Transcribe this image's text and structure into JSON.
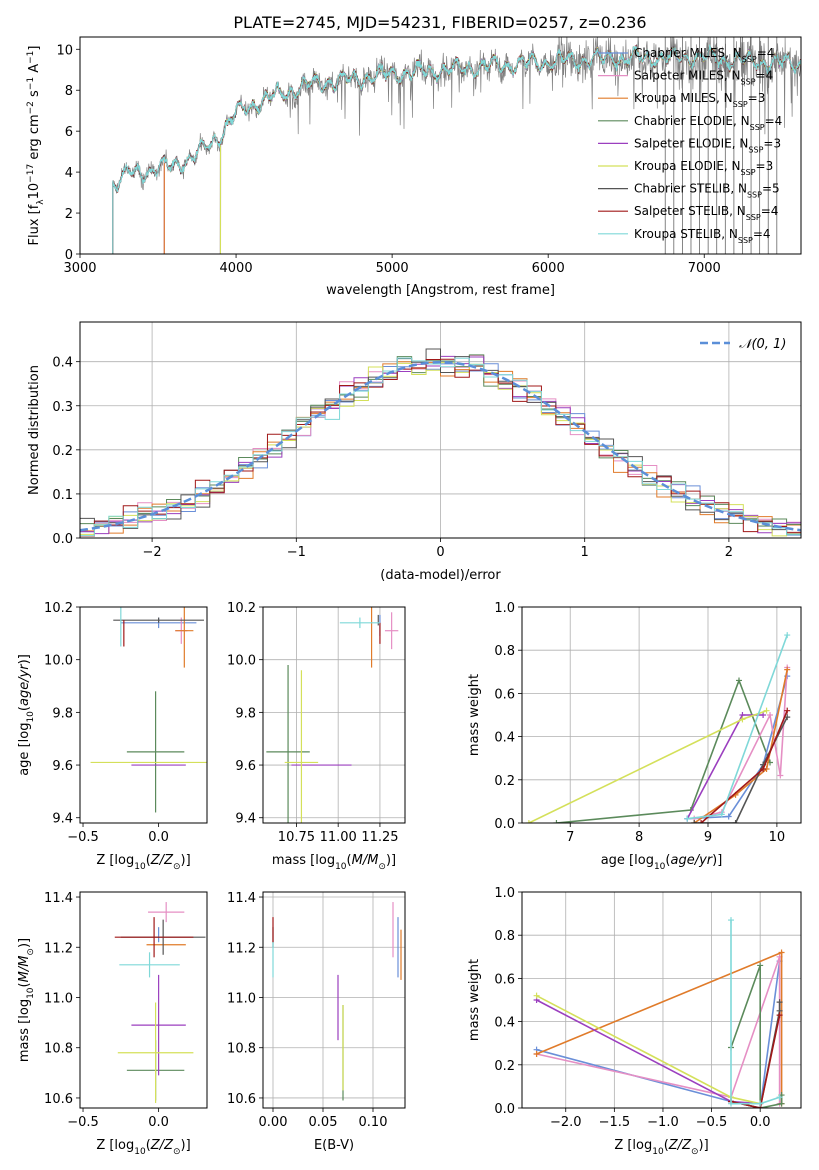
{
  "figure_title": "PLATE=2745, MJD=54231, FIBERID=0257, z=0.236",
  "model_colors": {
    "Chabrier MILES": "#6a8fd8",
    "Salpeter MILES": "#e58fc4",
    "Kroupa MILES": "#e07b2a",
    "Chabrier ELODIE": "#5b8a5b",
    "Salpeter ELODIE": "#9b3fbf",
    "Kroupa ELODIE": "#d4e05a",
    "Chabrier STELIB": "#555555",
    "Salpeter STELIB": "#a01818",
    "Kroupa STELIB": "#7fd8d8",
    "gaussian": "#5b8fd8",
    "observed": "#808080"
  },
  "chart_data": [
    {
      "id": "spectrum",
      "type": "line",
      "title": "PLATE=2745, MJD=54231, FIBERID=0257, z=0.236",
      "xlabel": "wavelength [Angstrom, rest frame]",
      "ylabel_parts": [
        "Flux [f",
        "λ",
        "10",
        "−17",
        " erg cm",
        "−2",
        " s",
        "−1",
        " A",
        "−1",
        "]"
      ],
      "xlim": [
        3000,
        7620
      ],
      "ylim": [
        0,
        10.6
      ],
      "xticks": [
        3000,
        4000,
        5000,
        6000,
        7000
      ],
      "yticks": [
        0,
        2,
        4,
        6,
        8,
        10
      ],
      "grid": false,
      "legend_position": "upper-right",
      "observed_start": 3210,
      "continuum_knots": [
        [
          3210,
          3.3
        ],
        [
          3300,
          3.9
        ],
        [
          3500,
          4.15
        ],
        [
          3700,
          4.6
        ],
        [
          3900,
          5.8
        ],
        [
          4000,
          6.9
        ],
        [
          4200,
          7.6
        ],
        [
          4500,
          8.3
        ],
        [
          5000,
          8.8
        ],
        [
          5500,
          9.1
        ],
        [
          6000,
          9.4
        ],
        [
          6500,
          9.6
        ],
        [
          7000,
          9.6
        ],
        [
          7300,
          9.4
        ],
        [
          7620,
          9.3
        ]
      ],
      "series": [
        {
          "name": "Chabrier MILES",
          "nssp": 4,
          "start": 3540
        },
        {
          "name": "Salpeter MILES",
          "nssp": 4,
          "start": 3540
        },
        {
          "name": "Kroupa MILES",
          "nssp": 3,
          "start": 3540
        },
        {
          "name": "Chabrier ELODIE",
          "nssp": 4,
          "start": 3900
        },
        {
          "name": "Salpeter ELODIE",
          "nssp": 3,
          "start": 3900
        },
        {
          "name": "Kroupa ELODIE",
          "nssp": 3,
          "start": 3900
        },
        {
          "name": "Chabrier STELIB",
          "nssp": 5,
          "start": 3210
        },
        {
          "name": "Salpeter STELIB",
          "nssp": 4,
          "start": 3210
        },
        {
          "name": "Kroupa STELIB",
          "nssp": 4,
          "start": 3210
        }
      ]
    },
    {
      "id": "residuals",
      "type": "histogram",
      "xlabel": "(data-model)/error",
      "ylabel": "Normed distribution",
      "xlim": [
        -2.5,
        2.5
      ],
      "ylim": [
        0,
        0.49
      ],
      "xticks": [
        -2,
        -1,
        0,
        1,
        2
      ],
      "yticks": [
        0.0,
        0.1,
        0.2,
        0.3,
        0.4
      ],
      "grid": true,
      "legend": "𝒩(0, 1)",
      "legend_position": "upper-right",
      "bin_width": 0.1,
      "reference": "standard normal density"
    },
    {
      "id": "age-vs-Z",
      "type": "errorbar",
      "xlabel": "Z [log10(Z/Z⊙)]",
      "ylabel": "age  [log10(age/yr)]",
      "xlim": [
        -0.52,
        0.32
      ],
      "ylim": [
        9.38,
        10.2
      ],
      "xticks": [
        -0.5,
        0.0
      ],
      "yticks": [
        9.4,
        9.6,
        9.8,
        10.0,
        10.2
      ],
      "grid": false,
      "points": [
        {
          "model": "Chabrier MILES",
          "x": 0.0,
          "y": 10.14,
          "xerr": 0.25,
          "yerr": 0.02
        },
        {
          "model": "Salpeter MILES",
          "x": 0.15,
          "y": 10.11,
          "xerr": 0.04,
          "yerr": 0.05
        },
        {
          "model": "Kroupa MILES",
          "x": 0.17,
          "y": 10.11,
          "xerr": 0.06,
          "yerr": 0.14
        },
        {
          "model": "Chabrier ELODIE",
          "x": -0.02,
          "y": 9.65,
          "xerr": 0.19,
          "yerr": 0.23
        },
        {
          "model": "Salpeter ELODIE",
          "x": 0.0,
          "y": 9.6,
          "xerr": 0.18,
          "yerr": 0.0
        },
        {
          "model": "Kroupa ELODIE",
          "x": -0.05,
          "y": 9.61,
          "xerr": 0.4,
          "yerr": 0.0
        },
        {
          "model": "Chabrier STELIB",
          "x": 0.0,
          "y": 10.15,
          "xerr": 0.3,
          "yerr": 0.01
        },
        {
          "model": "Salpeter STELIB",
          "x": -0.23,
          "y": 10.1,
          "xerr": 0.0,
          "yerr": 0.05
        },
        {
          "model": "Kroupa STELIB",
          "x": -0.25,
          "y": 10.14,
          "xerr": 0.0,
          "yerr": 0.09
        }
      ]
    },
    {
      "id": "age-vs-mass",
      "type": "errorbar",
      "xlabel": "mass [log10(M/M⊙)]",
      "xlim": [
        10.55,
        11.4
      ],
      "ylim": [
        9.38,
        10.2
      ],
      "xticks": [
        10.75,
        11.0,
        11.25
      ],
      "xtick_labels": [
        "10.75",
        "11.00",
        "11.25"
      ],
      "yticks": [
        9.4,
        9.6,
        9.8,
        10.0,
        10.2
      ],
      "grid": true,
      "points": [
        {
          "model": "Chabrier MILES",
          "x": 11.25,
          "y": 10.13,
          "xerr": 0.0,
          "yerr": 0.04
        },
        {
          "model": "Salpeter MILES",
          "x": 11.32,
          "y": 10.11,
          "xerr": 0.04,
          "yerr": 0.07
        },
        {
          "model": "Kroupa MILES",
          "x": 11.2,
          "y": 10.1,
          "xerr": 0.0,
          "yerr": 0.13
        },
        {
          "model": "Chabrier ELODIE",
          "x": 10.7,
          "y": 9.65,
          "xerr": 0.13,
          "yerr": 0.33
        },
        {
          "model": "Salpeter ELODIE",
          "x": 10.9,
          "y": 9.6,
          "xerr": 0.18,
          "yerr": 0.0
        },
        {
          "model": "Kroupa ELODIE",
          "x": 10.78,
          "y": 9.61,
          "xerr": 0.1,
          "yerr": 0.35
        },
        {
          "model": "Chabrier STELIB",
          "x": 11.24,
          "y": 10.15,
          "xerr": 0.0,
          "yerr": 0.02
        },
        {
          "model": "Salpeter STELIB",
          "x": 11.25,
          "y": 10.1,
          "xerr": 0.0,
          "yerr": 0.04
        },
        {
          "model": "Kroupa STELIB",
          "x": 11.13,
          "y": 10.14,
          "xerr": 0.12,
          "yerr": 0.02
        }
      ]
    },
    {
      "id": "weight-vs-age",
      "type": "line",
      "xlabel": "age  [log10(age/yr)]",
      "ylabel": "mass weight",
      "xlim": [
        6.3,
        10.35
      ],
      "ylim": [
        0,
        1.0
      ],
      "xticks": [
        7,
        8,
        9,
        10
      ],
      "yticks": [
        0.0,
        0.2,
        0.4,
        0.6,
        0.8,
        1.0
      ],
      "grid": true,
      "series": [
        {
          "model": "Chabrier ELODIE",
          "x": [
            6.8,
            8.75,
            9.45,
            9.9
          ],
          "y": [
            0.0,
            0.06,
            0.66,
            0.28
          ]
        },
        {
          "model": "Salpeter ELODIE",
          "x": [
            8.7,
            9.5,
            9.8
          ],
          "y": [
            0.02,
            0.5,
            0.5
          ]
        },
        {
          "model": "Kroupa ELODIE",
          "x": [
            6.4,
            9.5,
            9.85
          ],
          "y": [
            0.0,
            0.48,
            0.52
          ]
        },
        {
          "model": "Chabrier MILES",
          "x": [
            8.7,
            9.3,
            9.8,
            10.15
          ],
          "y": [
            0.02,
            0.03,
            0.27,
            0.68
          ]
        },
        {
          "model": "Salpeter MILES",
          "x": [
            8.8,
            9.2,
            9.9,
            10.05,
            10.15
          ],
          "y": [
            0.02,
            0.05,
            0.5,
            0.22,
            0.72
          ]
        },
        {
          "model": "Kroupa MILES",
          "x": [
            8.8,
            9.4,
            9.85,
            10.15
          ],
          "y": [
            0.0,
            0.13,
            0.25,
            0.71
          ]
        },
        {
          "model": "Chabrier STELIB",
          "x": [
            8.8,
            9.4,
            9.8,
            10.15
          ],
          "y": [
            0.0,
            0.0,
            0.27,
            0.49
          ]
        },
        {
          "model": "Salpeter STELIB",
          "x": [
            8.9,
            9.8,
            10.15
          ],
          "y": [
            0.0,
            0.25,
            0.52
          ]
        },
        {
          "model": "Kroupa STELIB",
          "x": [
            8.7,
            9.2,
            10.15
          ],
          "y": [
            0.02,
            0.04,
            0.87
          ]
        }
      ]
    },
    {
      "id": "mass-vs-Z",
      "type": "errorbar",
      "xlabel": "Z [log10(Z/Z⊙)]",
      "ylabel": "mass [log10(M/M⊙)]",
      "xlim": [
        -0.52,
        0.32
      ],
      "ylim": [
        10.56,
        11.42
      ],
      "xticks": [
        -0.5,
        0.0
      ],
      "yticks": [
        10.6,
        10.8,
        11.0,
        11.2,
        11.4
      ],
      "grid": false,
      "points": [
        {
          "model": "Chabrier MILES",
          "x": 0.0,
          "y": 11.25,
          "xerr": 0.0,
          "yerr": 0.03
        },
        {
          "model": "Salpeter MILES",
          "x": 0.05,
          "y": 11.34,
          "xerr": 0.12,
          "yerr": 0.04
        },
        {
          "model": "Kroupa MILES",
          "x": 0.05,
          "y": 11.21,
          "xerr": 0.13,
          "yerr": 0.0
        },
        {
          "model": "Chabrier ELODIE",
          "x": -0.02,
          "y": 10.71,
          "xerr": 0.19,
          "yerr": 0.12
        },
        {
          "model": "Salpeter ELODIE",
          "x": 0.0,
          "y": 10.89,
          "xerr": 0.18,
          "yerr": 0.2
        },
        {
          "model": "Kroupa ELODIE",
          "x": -0.02,
          "y": 10.78,
          "xerr": 0.25,
          "yerr": 0.2
        },
        {
          "model": "Chabrier STELIB",
          "x": 0.03,
          "y": 11.24,
          "xerr": 0.28,
          "yerr": 0.07
        },
        {
          "model": "Salpeter STELIB",
          "x": -0.03,
          "y": 11.24,
          "xerr": 0.26,
          "yerr": 0.08
        },
        {
          "model": "Kroupa STELIB",
          "x": -0.06,
          "y": 11.13,
          "xerr": 0.2,
          "yerr": 0.05
        }
      ]
    },
    {
      "id": "mass-vs-EBV",
      "type": "errorbar",
      "xlabel": "E(B-V)",
      "xlim": [
        -0.01,
        0.132
      ],
      "ylim": [
        10.56,
        11.42
      ],
      "xticks": [
        0.0,
        0.05,
        0.1
      ],
      "xtick_labels": [
        "0.00",
        "0.05",
        "0.10"
      ],
      "yticks": [
        10.6,
        10.8,
        11.0,
        11.2,
        11.4
      ],
      "grid": true,
      "points": [
        {
          "model": "Chabrier MILES",
          "x": 0.125,
          "y": 11.2,
          "xerr": 0.0,
          "yerr": 0.12
        },
        {
          "model": "Salpeter MILES",
          "x": 0.12,
          "y": 11.27,
          "xerr": 0.0,
          "yerr": 0.11
        },
        {
          "model": "Kroupa MILES",
          "x": 0.128,
          "y": 11.17,
          "xerr": 0.0,
          "yerr": 0.1
        },
        {
          "model": "Chabrier ELODIE",
          "x": 0.07,
          "y": 10.78,
          "xerr": 0.0,
          "yerr": 0.19
        },
        {
          "model": "Salpeter ELODIE",
          "x": 0.065,
          "y": 10.96,
          "xerr": 0.0,
          "yerr": 0.13
        },
        {
          "model": "Kroupa ELODIE",
          "x": 0.07,
          "y": 10.8,
          "xerr": 0.0,
          "yerr": 0.17
        },
        {
          "model": "Chabrier STELIB",
          "x": 0.0,
          "y": 11.24,
          "xerr": 0.0,
          "yerr": 0.04
        },
        {
          "model": "Salpeter STELIB",
          "x": 0.0,
          "y": 11.27,
          "xerr": 0.0,
          "yerr": 0.05
        },
        {
          "model": "Kroupa STELIB",
          "x": 0.0,
          "y": 11.15,
          "xerr": 0.0,
          "yerr": 0.07
        }
      ]
    },
    {
      "id": "weight-vs-Z",
      "type": "line",
      "xlabel": "Z [log10(Z/Z⊙)]",
      "ylabel": "mass weight",
      "xlim": [
        -2.45,
        0.42
      ],
      "ylim": [
        0,
        1.0
      ],
      "xticks": [
        -2.0,
        -1.5,
        -1.0,
        -0.5,
        0.0
      ],
      "yticks": [
        0.0,
        0.2,
        0.4,
        0.6,
        0.8,
        1.0
      ],
      "grid": true,
      "series": [
        {
          "model": "Chabrier MILES",
          "x": [
            -2.3,
            -0.3,
            0.0,
            0.2
          ],
          "y": [
            0.27,
            0.03,
            0.0,
            0.68
          ]
        },
        {
          "model": "Salpeter MILES",
          "x": [
            -2.3,
            -0.3,
            0.2,
            0.2
          ],
          "y": [
            0.25,
            0.05,
            0.7,
            0.02
          ]
        },
        {
          "model": "Kroupa MILES",
          "x": [
            -2.3,
            0.22,
            0.22
          ],
          "y": [
            0.25,
            0.72,
            0.02
          ]
        },
        {
          "model": "Chabrier ELODIE",
          "x": [
            -0.3,
            0.0,
            0.0,
            0.22,
            0.22
          ],
          "y": [
            0.28,
            0.66,
            0.0,
            0.02,
            0.06
          ]
        },
        {
          "model": "Salpeter ELODIE",
          "x": [
            -2.3,
            -0.3,
            0.0
          ],
          "y": [
            0.5,
            0.03,
            0.02
          ]
        },
        {
          "model": "Kroupa ELODIE",
          "x": [
            -2.3,
            -0.3,
            0.0
          ],
          "y": [
            0.52,
            0.05,
            0.02
          ]
        },
        {
          "model": "Chabrier STELIB",
          "x": [
            -0.3,
            0.0,
            0.2,
            0.2
          ],
          "y": [
            0.03,
            0.0,
            0.45,
            0.49
          ]
        },
        {
          "model": "Salpeter STELIB",
          "x": [
            -0.3,
            0.0,
            0.2
          ],
          "y": [
            0.03,
            0.0,
            0.43
          ]
        },
        {
          "model": "Kroupa STELIB",
          "x": [
            -0.3,
            -0.3,
            0.0,
            0.2
          ],
          "y": [
            0.87,
            0.02,
            0.02,
            0.05
          ]
        }
      ]
    }
  ]
}
